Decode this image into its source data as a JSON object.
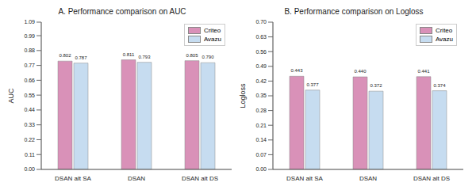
{
  "chart_data": [
    {
      "type": "bar",
      "title": "A. Performance comparison on AUC",
      "y_label": "AUC",
      "categories": [
        "DSAN alt SA",
        "DSAN",
        "DSAN alt DS"
      ],
      "series": [
        {
          "name": "Criteo",
          "color": "#d991b8",
          "values": [
            0.802,
            0.811,
            0.805
          ],
          "value_labels": [
            "0.802",
            "0.811",
            "0.805"
          ]
        },
        {
          "name": "Avazu",
          "color": "#c6dcf0",
          "values": [
            0.787,
            0.793,
            0.79
          ],
          "value_labels": [
            "0.787",
            "0.793",
            "0.790"
          ]
        }
      ],
      "ylim": [
        0,
        1.09
      ],
      "yticks": [
        {
          "value": 0,
          "label": "0.00"
        },
        0.11,
        0.22,
        0.33,
        0.44,
        0.55,
        0.66,
        0.77,
        0.88,
        0.99,
        1.09
      ],
      "grid": false,
      "legend": "upper right",
      "data_labels": true
    },
    {
      "type": "bar",
      "title": "B. Performance comparison on Logloss",
      "y_label": "Logloss",
      "categories": [
        "DSAN alt SA",
        "DSAN",
        "DSAN alt DS"
      ],
      "series": [
        {
          "name": "Criteo",
          "color": "#d991b8",
          "values": [
            0.443,
            0.44,
            0.441
          ],
          "value_labels": [
            "0.443",
            "0.440",
            "0.441"
          ]
        },
        {
          "name": "Avazu",
          "color": "#c6dcf0",
          "values": [
            0.377,
            0.372,
            0.374
          ],
          "value_labels": [
            "0.377",
            "0.372",
            "0.374"
          ]
        }
      ],
      "ylim": [
        0,
        0.7
      ],
      "yticks": [
        {
          "value": 0,
          "label": "0.00"
        },
        0.07,
        0.14,
        0.21,
        0.28,
        0.35,
        0.42,
        0.49,
        0.56,
        0.63,
        {
          "value": 0.7,
          "label": "0.70"
        }
      ],
      "grid": false,
      "legend": "upper right",
      "data_labels": true
    }
  ]
}
